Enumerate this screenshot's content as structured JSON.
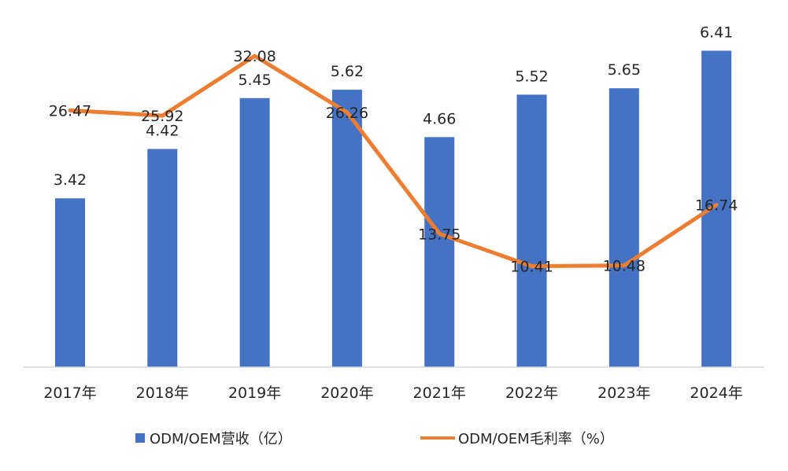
{
  "chart_data": {
    "type": "bar+line",
    "categories": [
      "2017年",
      "2018年",
      "2019年",
      "2020年",
      "2021年",
      "2022年",
      "2023年",
      "2024年"
    ],
    "series": [
      {
        "name": "ODM/OEM营收（亿）",
        "type": "bar",
        "color": "#4472C4",
        "values": [
          3.42,
          4.42,
          5.45,
          5.62,
          4.66,
          5.52,
          5.65,
          6.41
        ],
        "labels": [
          "3.42",
          "4.42",
          "5.45",
          "5.62",
          "4.66",
          "5.52",
          "5.65",
          "6.41"
        ]
      },
      {
        "name": "ODM/OEM毛利率（%）",
        "type": "line",
        "color": "#ED7D31",
        "values": [
          26.47,
          25.92,
          32.08,
          26.26,
          13.75,
          10.41,
          10.48,
          16.74
        ],
        "labels": [
          "26.47",
          "25.92",
          "32.08",
          "26.26",
          "13.75",
          "10.41",
          "10.48",
          "16.74"
        ]
      }
    ],
    "ylim_bar": [
      0,
      6.8
    ],
    "ylim_line": [
      0,
      34.6
    ],
    "legend_position": "bottom",
    "grid": false
  }
}
